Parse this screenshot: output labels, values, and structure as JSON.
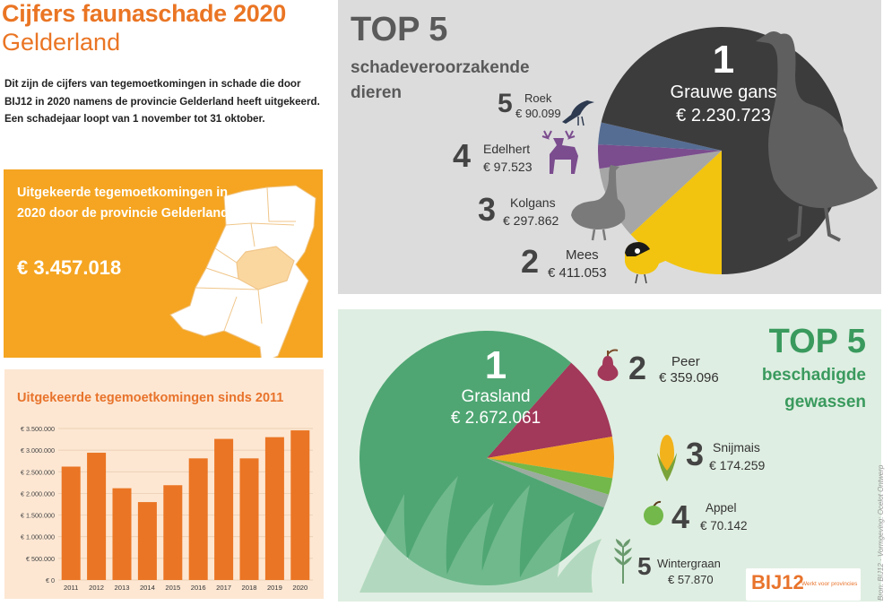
{
  "header": {
    "title_line1": "Cijfers faunaschade 2020",
    "title_line2": "Gelderland",
    "intro": "Dit zijn de cijfers van tegemoetkomingen in schade die door BIJ12 in 2020 namens de provincie Gelderland heeft uitgekeerd. Een schadejaar loopt van 1 november tot 31 oktober."
  },
  "total_box": {
    "label": "Uitgekeerde tegemoetkomingen in 2020 door de provincie Gelderland:",
    "amount": "€ 3.457.018"
  },
  "colors": {
    "orange": "#f5a521",
    "dark_orange": "#ea7524",
    "bar": "#ea7524",
    "green": "#3a9a5e",
    "pie_dark": "#3c3c3d"
  },
  "chart_data": [
    {
      "type": "bar",
      "title": "Uitgekeerde tegemoetkomingen sinds 2011",
      "categories": [
        "2011",
        "2012",
        "2013",
        "2014",
        "2015",
        "2016",
        "2017",
        "2018",
        "2019",
        "2020"
      ],
      "values": [
        2620000,
        2940000,
        2120000,
        1800000,
        2190000,
        2810000,
        3260000,
        2810000,
        3300000,
        3457018
      ],
      "ylim": [
        0,
        3500000
      ],
      "yticks": [
        0,
        500000,
        1000000,
        1500000,
        2000000,
        2500000,
        3000000,
        3500000
      ],
      "ytick_labels": [
        "€ 0",
        "€ 500.000",
        "€ 1.000.000",
        "€ 1.500.000",
        "€ 2.000.000",
        "€ 2.500.000",
        "€ 3.000.000",
        "€ 3.500.000"
      ],
      "grid": true
    },
    {
      "type": "pie",
      "title": "TOP 5",
      "subtitle": "schadeveroorzakende dieren",
      "slices": [
        {
          "rank": "1",
          "name": "Grauwe gans",
          "value": 2230723,
          "label": "€ 2.230.723",
          "color": "#3c3c3d"
        },
        {
          "rank": "2",
          "name": "Mees",
          "value": 411053,
          "label": "€ 411.053",
          "color": "#f2c40f"
        },
        {
          "rank": "3",
          "name": "Kolgans",
          "value": 297862,
          "label": "€ 297.862",
          "color": "#a6a6a7"
        },
        {
          "rank": "4",
          "name": "Edelhert",
          "value": 97523,
          "label": "€ 97.523",
          "color": "#7b4c8e"
        },
        {
          "rank": "5",
          "name": "Roek",
          "value": 90099,
          "label": "€ 90.099",
          "color": "#566d93"
        }
      ]
    },
    {
      "type": "pie",
      "title": "TOP 5",
      "subtitle": "beschadigde gewassen",
      "slices": [
        {
          "rank": "1",
          "name": "Grasland",
          "value": 2672061,
          "label": "€ 2.672.061",
          "color": "#4fa673"
        },
        {
          "rank": "2",
          "name": "Peer",
          "value": 359096,
          "label": "€ 359.096",
          "color": "#a2385a"
        },
        {
          "rank": "3",
          "name": "Snijmais",
          "value": 174259,
          "label": "€ 174.259",
          "color": "#f4a21d"
        },
        {
          "rank": "4",
          "name": "Appel",
          "value": 70142,
          "label": "€ 70.142",
          "color": "#72b84a"
        },
        {
          "rank": "5",
          "name": "Wintergraan",
          "value": 57870,
          "label": "€ 57.870",
          "color": "#9bab9f"
        }
      ]
    }
  ],
  "credit": "Bron: BIJ12 · Vormgeving: Ocelot Ontwerp",
  "logo": {
    "name": "BIJ12",
    "tagline": "Werkt voor provincies"
  }
}
